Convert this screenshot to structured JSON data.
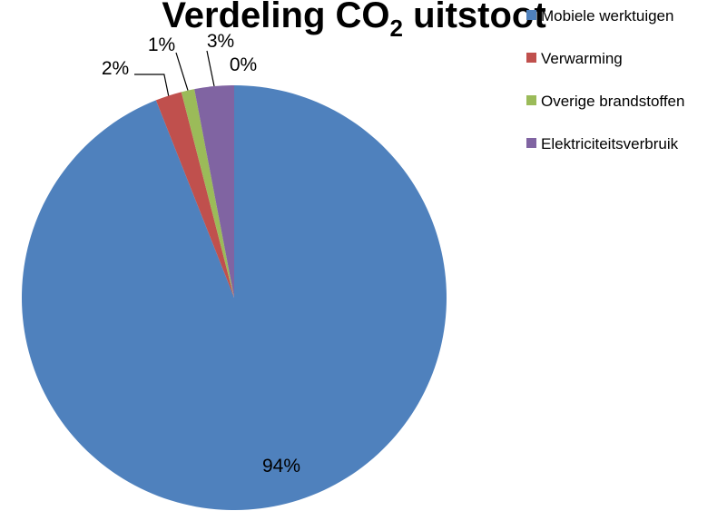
{
  "chart_data": {
    "type": "pie",
    "title": "Verdeling CO",
    "title_subscript": "2",
    "title_suffix": " uitstoot",
    "legend_position": "right",
    "slices": [
      {
        "name": "Mobiele werktuigen",
        "value": 94,
        "label": "94%",
        "color": "#4F81BD"
      },
      {
        "name": "Verwarming",
        "value": 2,
        "label": "2%",
        "color": "#C0504D"
      },
      {
        "name": "Overige brandstoffen",
        "value": 1,
        "label": "1%",
        "color": "#9BBB59"
      },
      {
        "name": "Elektriciteitsverbruik",
        "value": 3,
        "label": "3%",
        "color": "#8064A2"
      }
    ],
    "extra_labels": [
      "0%"
    ]
  }
}
